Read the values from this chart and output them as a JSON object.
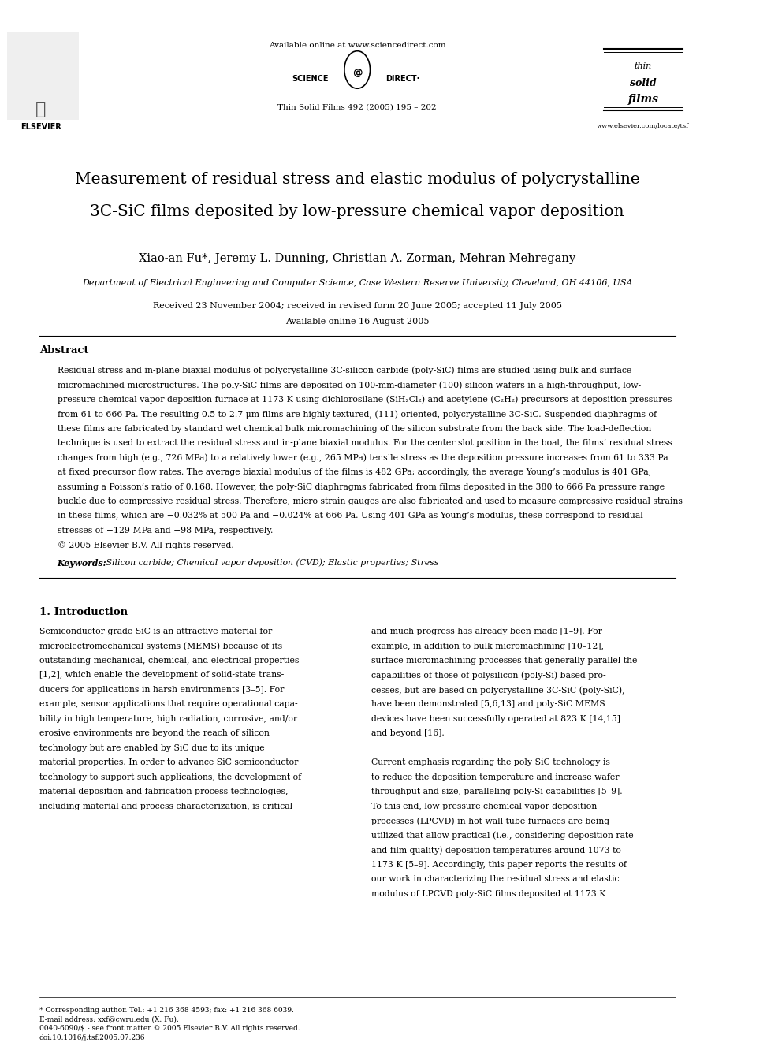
{
  "bg_color": "#ffffff",
  "page_width": 9.92,
  "page_height": 13.23,
  "header_available_online": "Available online at www.sciencedirect.com",
  "journal_name": "Thin Solid Films 492 (2005) 195 – 202",
  "website": "www.elsevier.com/locate/tsf",
  "paper_title_line1": "Measurement of residual stress and elastic modulus of polycrystalline",
  "paper_title_line2": "3C-SiC films deposited by low-pressure chemical vapor deposition",
  "authors": "Xiao-an Fu*, Jeremy L. Dunning, Christian A. Zorman, Mehran Mehregany",
  "affiliation": "Department of Electrical Engineering and Computer Science, Case Western Reserve University, Cleveland, OH 44106, USA",
  "dates_line1": "Received 23 November 2004; received in revised form 20 June 2005; accepted 11 July 2005",
  "dates_line2": "Available online 16 August 2005",
  "abstract_title": "Abstract",
  "abstract_text": "Residual stress and in-plane biaxial modulus of polycrystalline 3C-silicon carbide (poly-SiC) films are studied using bulk and surface\nmicromachined microstructures. The poly-SiC films are deposited on 100-mm-diameter (100) silicon wafers in a high-throughput, low-\npressure chemical vapor deposition furnace at 1173 K using dichlorosilane (SiH₂Cl₂) and acetylene (C₂H₂) precursors at deposition pressures\nfrom 61 to 666 Pa. The resulting 0.5 to 2.7 μm films are highly textured, (111) oriented, polycrystalline 3C-SiC. Suspended diaphragms of\nthese films are fabricated by standard wet chemical bulk micromachining of the silicon substrate from the back side. The load-deflection\ntechnique is used to extract the residual stress and in-plane biaxial modulus. For the center slot position in the boat, the films’ residual stress\nchanges from high (e.g., 726 MPa) to a relatively lower (e.g., 265 MPa) tensile stress as the deposition pressure increases from 61 to 333 Pa\nat fixed precursor flow rates. The average biaxial modulus of the films is 482 GPa; accordingly, the average Young’s modulus is 401 GPa,\nassuming a Poisson’s ratio of 0.168. However, the poly-SiC diaphragms fabricated from films deposited in the 380 to 666 Pa pressure range\nbuckle due to compressive residual stress. Therefore, micro strain gauges are also fabricated and used to measure compressive residual strains\nin these films, which are −0.032% at 500 Pa and −0.024% at 666 Pa. Using 401 GPa as Young’s modulus, these correspond to residual\nstresses of −129 MPa and −98 MPa, respectively.\n© 2005 Elsevier B.V. All rights reserved.",
  "keywords_label": "Keywords:",
  "keywords_text": " Silicon carbide; Chemical vapor deposition (CVD); Elastic properties; Stress",
  "section1_title": "1. Introduction",
  "section1_col1_text": "Semiconductor-grade SiC is an attractive material for\nmicroelectromechanical systems (MEMS) because of its\noutstanding mechanical, chemical, and electrical properties\n[1,2], which enable the development of solid-state trans-\nducers for applications in harsh environments [3–5]. For\nexample, sensor applications that require operational capa-\nbility in high temperature, high radiation, corrosive, and/or\nerosive environments are beyond the reach of silicon\ntechnology but are enabled by SiC due to its unique\nmaterial properties. In order to advance SiC semiconductor\ntechnology to support such applications, the development of\nmaterial deposition and fabrication process technologies,\nincluding material and process characterization, is critical",
  "section1_col2_text": "and much progress has already been made [1–9]. For\nexample, in addition to bulk micromachining [10–12],\nsurface micromachining processes that generally parallel the\ncapabilities of those of polysilicon (poly-Si) based pro-\ncesses, but are based on polycrystalline 3C-SiC (poly-SiC),\nhave been demonstrated [5,6,13] and poly-SiC MEMS\ndevices have been successfully operated at 823 K [14,15]\nand beyond [16].\n\nCurrent emphasis regarding the poly-SiC technology is\nto reduce the deposition temperature and increase wafer\nthroughput and size, paralleling poly-Si capabilities [5–9].\nTo this end, low-pressure chemical vapor deposition\nprocesses (LPCVD) in hot-wall tube furnaces are being\nutilized that allow practical (i.e., considering deposition rate\nand film quality) deposition temperatures around 1073 to\n1173 K [5–9]. Accordingly, this paper reports the results of\nour work in characterizing the residual stress and elastic\nmodulus of LPCVD poly-SiC films deposited at 1173 K",
  "footer_note": "* Corresponding author. Tel.: +1 216 368 4593; fax: +1 216 368 6039.",
  "footer_email": "E-mail address: xxf@cwru.edu (X. Fu).",
  "footer_issn": "0040-6090/$ - see front matter © 2005 Elsevier B.V. All rights reserved.",
  "footer_doi": "doi:10.1016/j.tsf.2005.07.236",
  "ref_color": "#0000cc"
}
